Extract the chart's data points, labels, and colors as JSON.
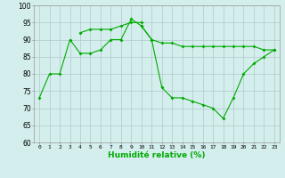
{
  "title": "",
  "xlabel": "Humidité relative (%)",
  "ylabel": "",
  "xlim": [
    -0.5,
    23.5
  ],
  "ylim": [
    60,
    100
  ],
  "yticks": [
    60,
    65,
    70,
    75,
    80,
    85,
    90,
    95,
    100
  ],
  "xticks": [
    0,
    1,
    2,
    3,
    4,
    5,
    6,
    7,
    8,
    9,
    10,
    11,
    12,
    13,
    14,
    15,
    16,
    17,
    18,
    19,
    20,
    21,
    22,
    23
  ],
  "bg_color": "#d4eeee",
  "grid_color": "#b0c8c8",
  "line_color": "#00aa00",
  "line1": [
    73,
    80,
    80,
    90,
    86,
    86,
    87,
    90,
    90,
    96,
    94,
    90,
    89,
    89,
    88,
    88,
    88,
    88,
    88,
    88,
    88,
    88,
    87,
    87
  ],
  "line2": [
    null,
    null,
    null,
    null,
    92,
    93,
    93,
    93,
    94,
    95,
    95,
    null,
    null,
    null,
    null,
    null,
    null,
    null,
    null,
    null,
    null,
    null,
    null,
    null
  ],
  "line3": [
    null,
    null,
    null,
    null,
    null,
    null,
    null,
    null,
    null,
    null,
    94,
    90,
    76,
    73,
    73,
    72,
    71,
    70,
    67,
    73,
    80,
    83,
    85,
    87
  ]
}
